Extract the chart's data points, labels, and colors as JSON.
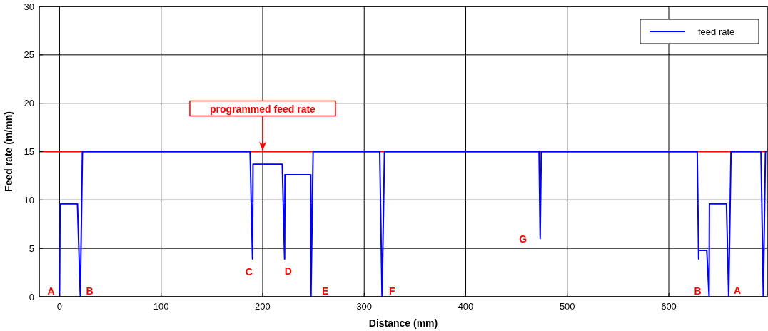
{
  "chart_data": {
    "type": "line",
    "xlabel": "Distance (mm)",
    "ylabel": "Feed rate (m/mn)",
    "xlim": [
      -20,
      697
    ],
    "xticks": [
      0,
      100,
      200,
      300,
      400,
      500,
      600
    ],
    "ylim": [
      0,
      30
    ],
    "yticks": [
      0,
      5,
      10,
      15,
      20,
      25,
      30
    ],
    "grid": true,
    "legend": "top right",
    "marker": "none",
    "line_style": "solid",
    "series": [
      {
        "name": "feed rate",
        "color": "#0000ff",
        "x": [
          0,
          0.5,
          17.6,
          20.4,
          22.5,
          187.6,
          190,
          190.5,
          219.3,
          221.6,
          222,
          247.4,
          247.6,
          249.7,
          315.3,
          317.6,
          320,
          472.2,
          473.3,
          474.4,
          628,
          629.4,
          629.6,
          637.4,
          639.7,
          640,
          656.8,
          659,
          661.3,
          690.8,
          693.1,
          695.2,
          697
        ],
        "values": [
          0,
          9.6,
          9.6,
          0,
          15,
          15,
          3.9,
          13.7,
          13.7,
          3.9,
          12.6,
          12.6,
          0,
          15,
          15,
          0,
          15,
          15,
          6,
          15,
          15,
          3.9,
          4.8,
          4.8,
          0,
          9.6,
          9.6,
          0,
          15,
          15,
          0,
          15,
          15
        ]
      }
    ],
    "ref_lines": [
      {
        "axis": "y",
        "value": 15,
        "color": "#ff0000",
        "line_style": "solid"
      }
    ],
    "annotations": [
      {
        "text": "programmed feed rate",
        "x": 200,
        "y": 15
      },
      {
        "text": "A",
        "x": 0,
        "y": 0
      },
      {
        "text": "B",
        "x": 20.4,
        "y": 0
      },
      {
        "text": "C",
        "x": 190,
        "y": 3.9
      },
      {
        "text": "D",
        "x": 221.6,
        "y": 3.9
      },
      {
        "text": "E",
        "x": 247.6,
        "y": 0
      },
      {
        "text": "F",
        "x": 317.6,
        "y": 0
      },
      {
        "text": "G",
        "x": 473.3,
        "y": 6
      },
      {
        "text": "B",
        "x": 639.7,
        "y": 0
      },
      {
        "text": "A",
        "x": 659,
        "y": 0
      }
    ]
  }
}
